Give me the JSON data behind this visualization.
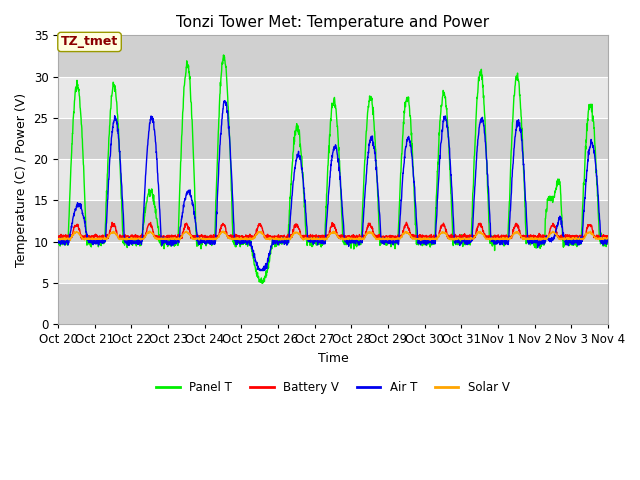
{
  "title": "Tonzi Tower Met: Temperature and Power",
  "xlabel": "Time",
  "ylabel": "Temperature (C) / Power (V)",
  "ylim": [
    0,
    35
  ],
  "yticks": [
    0,
    5,
    10,
    15,
    20,
    25,
    30,
    35
  ],
  "xtick_labels": [
    "Oct 20",
    "Oct 21",
    "Oct 22",
    "Oct 23",
    "Oct 24",
    "Oct 25",
    "Oct 26",
    "Oct 27",
    "Oct 28",
    "Oct 29",
    "Oct 30",
    "Oct 31",
    "Nov 1",
    "Nov 2",
    "Nov 3",
    "Nov 4"
  ],
  "legend_labels": [
    "Panel T",
    "Battery V",
    "Air T",
    "Solar V"
  ],
  "legend_colors": [
    "#00ee00",
    "#ff0000",
    "#0000ee",
    "#ffa500"
  ],
  "annotation_text": "TZ_tmet",
  "annotation_color": "#8b0000",
  "annotation_bg": "#ffffe0",
  "annotation_edge": "#999900",
  "plot_bg": "#e8e8e8",
  "fig_bg": "#ffffff",
  "grid_color": "#ffffff",
  "band_color": "#d0d0d0",
  "title_fontsize": 11,
  "axis_fontsize": 9,
  "tick_fontsize": 8.5
}
